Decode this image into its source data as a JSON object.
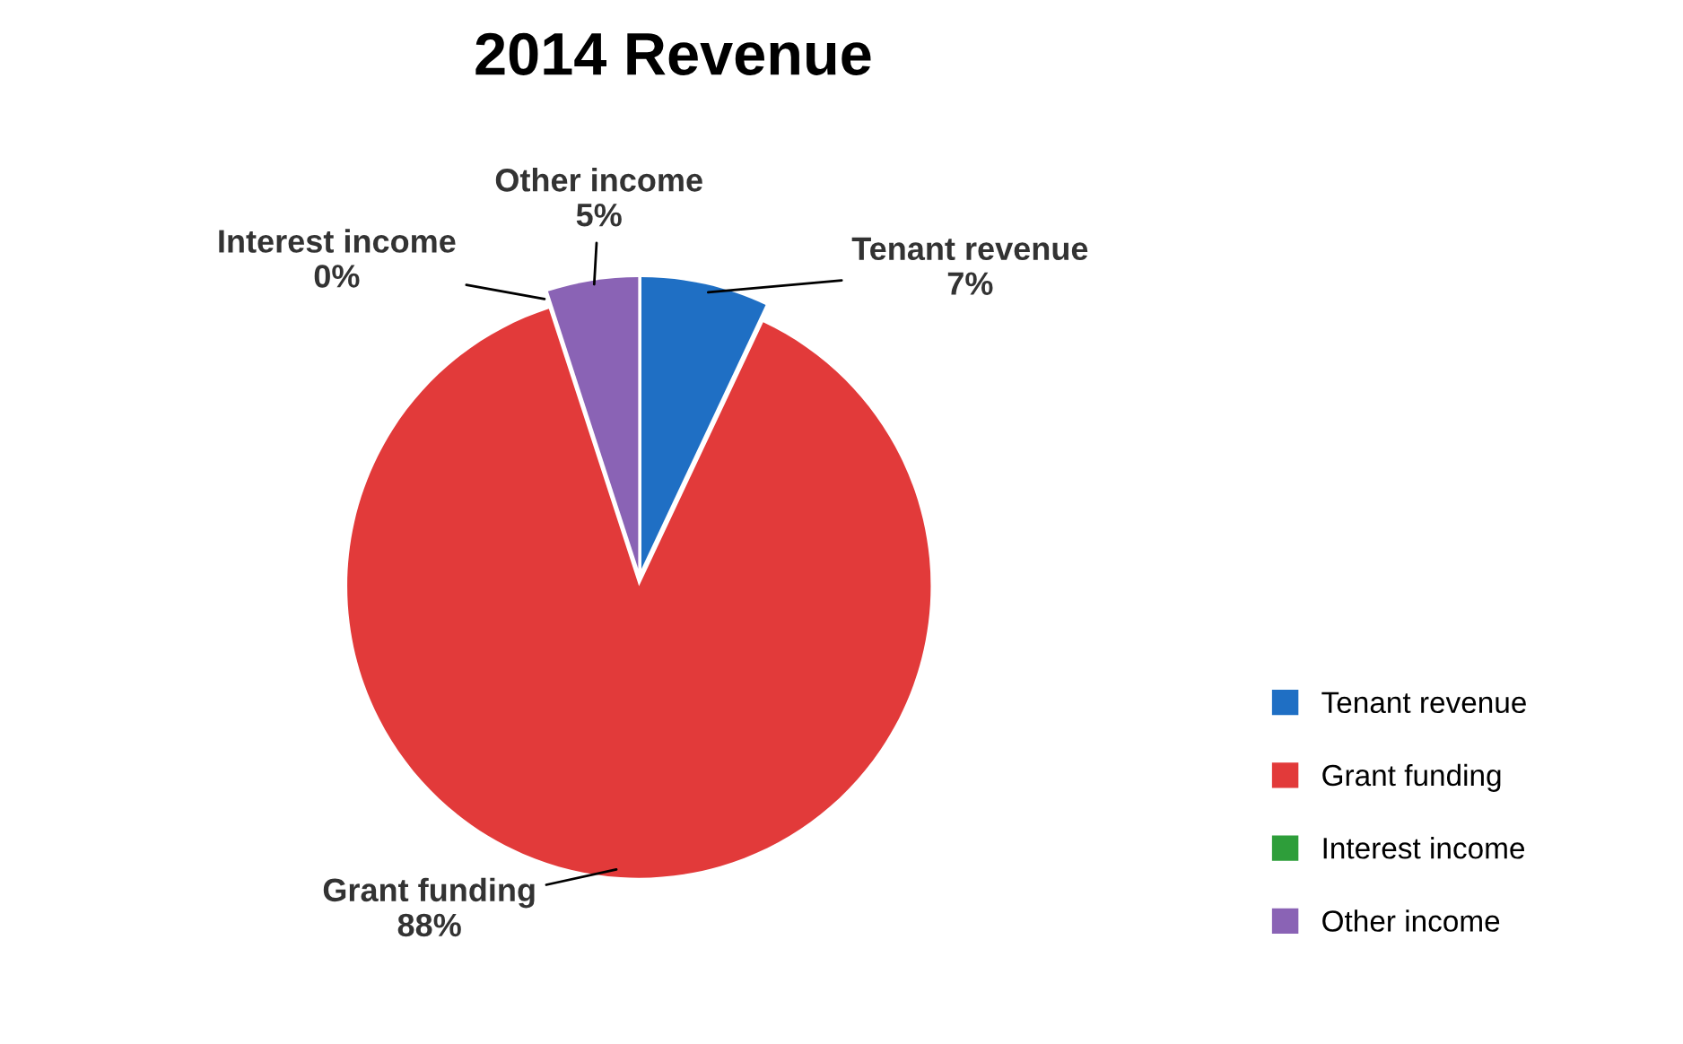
{
  "chart_data": {
    "type": "pie",
    "title": "2014 Revenue",
    "categories": [
      "Tenant revenue",
      "Grant funding",
      "Interest income",
      "Other income"
    ],
    "values": [
      7,
      88,
      0,
      5
    ],
    "value_labels": [
      "7%",
      "88%",
      "0%",
      "5%"
    ],
    "colors": [
      "#1f6fc4",
      "#e23a3a",
      "#2e9e3a",
      "#8a63b5"
    ],
    "legend": "right"
  }
}
